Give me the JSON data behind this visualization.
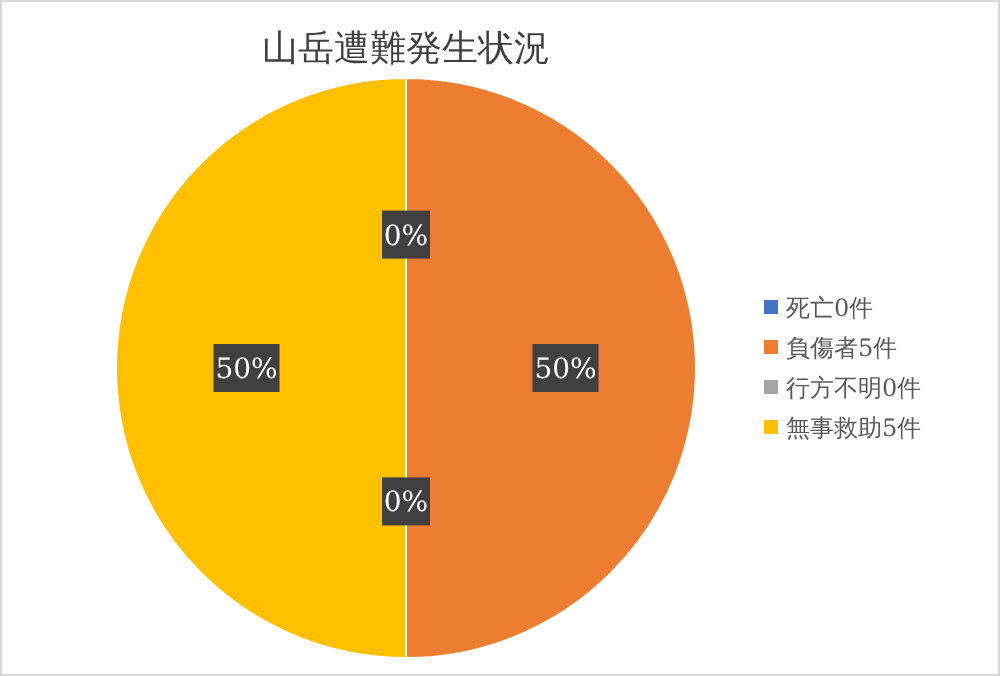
{
  "chart_data": {
    "type": "pie",
    "title": "山岳遭難発生状況",
    "categories": [
      "死亡0件",
      "負傷者5件",
      "行方不明0件",
      "無事救助5件"
    ],
    "values": [
      0,
      50,
      0,
      50
    ],
    "colors": [
      "#4472c4",
      "#ed7d31",
      "#a5a5a5",
      "#ffc000"
    ],
    "value_labels": [
      "0%",
      "50%",
      "0%",
      "50%"
    ],
    "legend": "right"
  }
}
